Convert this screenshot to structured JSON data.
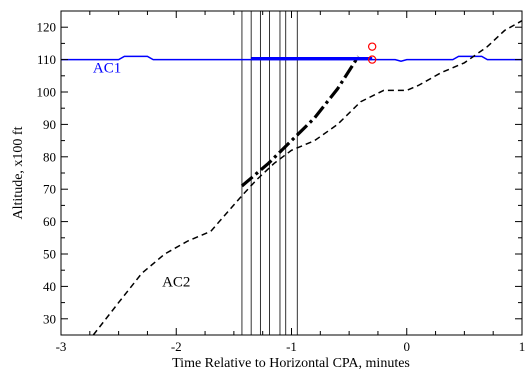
{
  "chart_data": {
    "type": "line",
    "xlabel": "Time Relative to Horizontal CPA, minutes",
    "ylabel": "Altitude, x100 ft",
    "xlim": [
      -3,
      1
    ],
    "ylim": [
      25,
      125
    ],
    "xticks": [
      -3,
      -2,
      -1,
      0,
      1
    ],
    "yticks": [
      30,
      40,
      50,
      60,
      70,
      80,
      90,
      100,
      110,
      120
    ],
    "grid": false,
    "series": [
      {
        "name": "AC1",
        "color": "#0000ff",
        "style": "solid",
        "points": [
          [
            -3.0,
            110
          ],
          [
            -2.5,
            110
          ],
          [
            -2.45,
            111
          ],
          [
            -2.25,
            111
          ],
          [
            -2.2,
            110
          ],
          [
            -1.2,
            110
          ],
          [
            -0.3,
            110
          ],
          [
            -0.1,
            110
          ],
          [
            -0.05,
            109.5
          ],
          [
            0.0,
            110
          ],
          [
            0.4,
            110
          ],
          [
            0.45,
            111
          ],
          [
            0.65,
            111
          ],
          [
            0.7,
            110
          ],
          [
            1.0,
            110
          ]
        ]
      },
      {
        "name": "AC2",
        "color": "#000000",
        "style": "dashed",
        "points": [
          [
            -2.72,
            25
          ],
          [
            -2.5,
            35
          ],
          [
            -2.3,
            44
          ],
          [
            -2.1,
            50
          ],
          [
            -1.9,
            54
          ],
          [
            -1.7,
            57
          ],
          [
            -1.43,
            68
          ],
          [
            -1.3,
            73
          ],
          [
            -1.15,
            78
          ],
          [
            -1.0,
            82
          ],
          [
            -0.8,
            85
          ],
          [
            -0.6,
            90
          ],
          [
            -0.4,
            97
          ],
          [
            -0.2,
            100.5
          ],
          [
            0.0,
            100.5
          ],
          [
            0.1,
            102
          ],
          [
            0.3,
            106
          ],
          [
            0.5,
            109
          ],
          [
            0.7,
            114
          ],
          [
            0.85,
            119
          ],
          [
            1.0,
            122
          ]
        ]
      }
    ],
    "maneuver_segments": [
      {
        "color": "#000000",
        "points": [
          [
            -1.43,
            71
          ],
          [
            -1.2,
            78
          ],
          [
            -1.0,
            85
          ],
          [
            -0.8,
            92
          ],
          [
            -0.6,
            101
          ],
          [
            -0.42,
            111
          ]
        ]
      },
      {
        "color": "#0000ff",
        "points": [
          [
            -1.35,
            110.3
          ],
          [
            -0.3,
            110.3
          ]
        ]
      }
    ],
    "vertical_lines": [
      -1.43,
      -1.35,
      -1.27,
      -1.19,
      -1.1,
      -1.05,
      -0.95
    ],
    "annotation_markers": [
      {
        "x": -0.3,
        "y": 114,
        "color": "#ff0000"
      },
      {
        "x": -0.3,
        "y": 110,
        "color": "#ff0000"
      }
    ],
    "labels": [
      {
        "text": "AC1",
        "x": -2.6,
        "y": 106,
        "color": "#0000ff"
      },
      {
        "text": "AC2",
        "x": -2.0,
        "y": 40,
        "color": "#000000"
      }
    ]
  }
}
